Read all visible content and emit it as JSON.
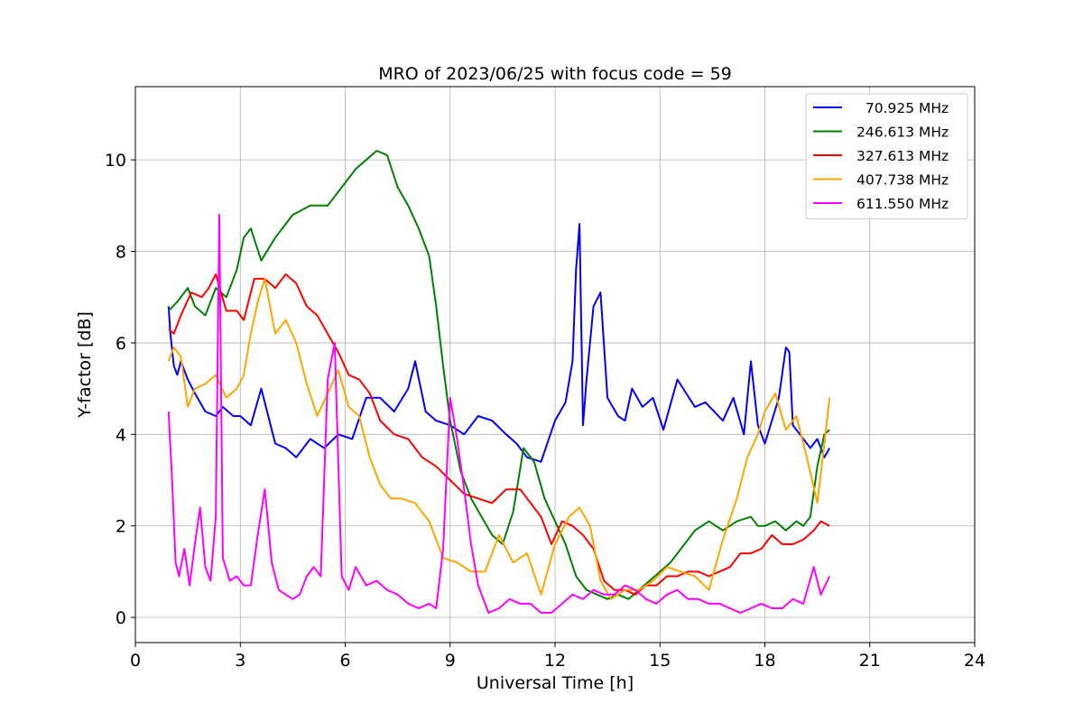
{
  "chart_data": {
    "type": "line",
    "title": "MRO of 2023/06/25 with focus code = 59",
    "xlabel": "Universal Time [h]",
    "ylabel": "Y-factor [dB]",
    "xlim": [
      0,
      24
    ],
    "ylim": [
      -0.55,
      11.6
    ],
    "x_ticks": [
      0,
      3,
      6,
      9,
      12,
      15,
      18,
      21,
      24
    ],
    "y_ticks": [
      0,
      2,
      4,
      6,
      8,
      10
    ],
    "grid": true,
    "legend_position": "upper right",
    "series": [
      {
        "name": "  70.925 MHz",
        "color": "#0000ff",
        "x": [
          0.95,
          1.0,
          1.1,
          1.2,
          1.3,
          1.5,
          1.7,
          2.0,
          2.3,
          2.5,
          2.8,
          3.0,
          3.3,
          3.6,
          4.0,
          4.3,
          4.6,
          5.0,
          5.4,
          5.8,
          6.2,
          6.6,
          7.0,
          7.4,
          7.8,
          8.0,
          8.3,
          8.6,
          9.0,
          9.4,
          9.8,
          10.2,
          10.6,
          10.9,
          11.2,
          11.6,
          12.0,
          12.3,
          12.5,
          12.6,
          12.7,
          12.8,
          12.9,
          13.1,
          13.3,
          13.5,
          13.8,
          14.0,
          14.2,
          14.5,
          14.8,
          15.1,
          15.5,
          16.0,
          16.3,
          16.8,
          17.1,
          17.4,
          17.6,
          17.8,
          18.0,
          18.4,
          18.6,
          18.7,
          18.8,
          19.0,
          19.3,
          19.5,
          19.7,
          19.85
        ],
        "y": [
          6.8,
          6.2,
          5.5,
          5.3,
          5.6,
          5.2,
          4.9,
          4.5,
          4.4,
          4.6,
          4.4,
          4.4,
          4.2,
          5.0,
          3.8,
          3.7,
          3.5,
          3.9,
          3.7,
          4.0,
          3.9,
          4.8,
          4.8,
          4.5,
          5.0,
          5.6,
          4.5,
          4.3,
          4.2,
          4.0,
          4.4,
          4.3,
          4.0,
          3.8,
          3.5,
          3.4,
          4.3,
          4.7,
          5.6,
          7.6,
          8.6,
          4.2,
          5.2,
          6.8,
          7.1,
          4.8,
          4.4,
          4.3,
          5.0,
          4.6,
          4.8,
          4.1,
          5.2,
          4.6,
          4.7,
          4.3,
          4.8,
          4.0,
          5.6,
          4.2,
          3.8,
          4.8,
          5.9,
          5.8,
          4.2,
          4.0,
          3.7,
          3.9,
          3.5,
          3.7
        ]
      },
      {
        "name": "246.613 MHz",
        "color": "#008000",
        "x": [
          0.95,
          1.2,
          1.5,
          1.7,
          2.0,
          2.3,
          2.6,
          2.9,
          3.1,
          3.3,
          3.6,
          4.0,
          4.5,
          5.0,
          5.5,
          6.0,
          6.3,
          6.6,
          6.9,
          7.2,
          7.5,
          7.8,
          8.1,
          8.4,
          8.6,
          8.8,
          9.0,
          9.3,
          9.6,
          9.9,
          10.2,
          10.5,
          10.8,
          11.1,
          11.4,
          11.7,
          12.0,
          12.3,
          12.6,
          12.9,
          13.2,
          13.5,
          13.8,
          14.1,
          14.4,
          14.7,
          15.0,
          15.3,
          15.6,
          16.0,
          16.4,
          16.8,
          17.2,
          17.6,
          17.8,
          18.0,
          18.3,
          18.6,
          18.9,
          19.1,
          19.3,
          19.5,
          19.7,
          19.85
        ],
        "y": [
          6.7,
          6.9,
          7.2,
          6.8,
          6.6,
          7.2,
          7.0,
          7.6,
          8.3,
          8.5,
          7.8,
          8.3,
          8.8,
          9.0,
          9.0,
          9.5,
          9.8,
          10.0,
          10.2,
          10.1,
          9.4,
          9.0,
          8.5,
          7.9,
          6.8,
          5.5,
          4.3,
          3.2,
          2.6,
          2.2,
          1.8,
          1.6,
          2.3,
          3.7,
          3.4,
          2.6,
          2.1,
          1.6,
          0.9,
          0.6,
          0.5,
          0.4,
          0.5,
          0.4,
          0.6,
          0.8,
          1.0,
          1.2,
          1.5,
          1.9,
          2.1,
          1.9,
          2.1,
          2.2,
          2.0,
          2.0,
          2.1,
          1.9,
          2.1,
          2.0,
          2.2,
          3.3,
          4.0,
          4.1
        ]
      },
      {
        "name": "327.613 MHz",
        "color": "#ff0000",
        "x": [
          0.95,
          1.1,
          1.3,
          1.6,
          1.9,
          2.1,
          2.3,
          2.6,
          2.9,
          3.1,
          3.4,
          3.7,
          4.0,
          4.3,
          4.6,
          4.9,
          5.2,
          5.5,
          5.8,
          6.1,
          6.4,
          6.7,
          7.0,
          7.4,
          7.8,
          8.2,
          8.6,
          9.0,
          9.4,
          9.8,
          10.2,
          10.6,
          11.0,
          11.3,
          11.6,
          11.9,
          12.2,
          12.5,
          12.8,
          13.1,
          13.4,
          13.7,
          14.0,
          14.3,
          14.6,
          14.9,
          15.2,
          15.5,
          15.8,
          16.1,
          16.4,
          16.7,
          17.0,
          17.3,
          17.6,
          17.9,
          18.2,
          18.5,
          18.8,
          19.1,
          19.4,
          19.6,
          19.85
        ],
        "y": [
          6.3,
          6.2,
          6.6,
          7.1,
          7.0,
          7.2,
          7.5,
          6.7,
          6.7,
          6.5,
          7.4,
          7.4,
          7.2,
          7.5,
          7.3,
          6.8,
          6.6,
          6.2,
          5.8,
          5.3,
          5.2,
          4.9,
          4.3,
          4.0,
          3.9,
          3.5,
          3.3,
          3.0,
          2.7,
          2.6,
          2.5,
          2.8,
          2.8,
          2.5,
          2.2,
          1.6,
          2.1,
          2.0,
          1.8,
          1.5,
          0.8,
          0.6,
          0.6,
          0.5,
          0.7,
          0.7,
          0.9,
          0.9,
          1.0,
          1.0,
          0.9,
          1.0,
          1.1,
          1.4,
          1.4,
          1.5,
          1.8,
          1.6,
          1.6,
          1.7,
          1.9,
          2.1,
          2.0
        ]
      },
      {
        "name": "407.738 MHz",
        "color": "#ffa500",
        "x": [
          0.95,
          1.1,
          1.3,
          1.5,
          1.7,
          2.0,
          2.3,
          2.6,
          2.9,
          3.1,
          3.3,
          3.5,
          3.7,
          4.0,
          4.3,
          4.6,
          4.9,
          5.2,
          5.5,
          5.8,
          6.1,
          6.4,
          6.7,
          7.0,
          7.3,
          7.6,
          8.0,
          8.4,
          8.8,
          9.2,
          9.6,
          10.0,
          10.4,
          10.8,
          11.2,
          11.6,
          12.0,
          12.4,
          12.7,
          13.0,
          13.3,
          13.6,
          14.0,
          14.4,
          14.8,
          15.2,
          15.6,
          16.0,
          16.4,
          16.8,
          17.2,
          17.5,
          17.8,
          18.0,
          18.3,
          18.6,
          18.9,
          19.2,
          19.5,
          19.7,
          19.85
        ],
        "y": [
          5.6,
          5.9,
          5.7,
          4.6,
          5.0,
          5.1,
          5.3,
          4.8,
          5.0,
          5.3,
          6.2,
          6.9,
          7.4,
          6.2,
          6.5,
          6.0,
          5.1,
          4.4,
          4.9,
          5.4,
          4.6,
          4.4,
          3.5,
          2.9,
          2.6,
          2.6,
          2.5,
          2.1,
          1.3,
          1.2,
          1.0,
          1.0,
          1.8,
          1.2,
          1.4,
          0.5,
          1.6,
          2.2,
          2.4,
          2.0,
          0.8,
          0.4,
          0.6,
          0.6,
          0.8,
          1.1,
          1.0,
          0.9,
          0.6,
          1.7,
          2.6,
          3.5,
          4.0,
          4.5,
          4.9,
          4.1,
          4.4,
          3.5,
          2.5,
          3.8,
          4.8
        ]
      },
      {
        "name": "611.550 MHz",
        "color": "#ff00ff",
        "x": [
          0.95,
          1.05,
          1.15,
          1.25,
          1.4,
          1.55,
          1.7,
          1.85,
          2.0,
          2.15,
          2.3,
          2.4,
          2.5,
          2.7,
          2.9,
          3.1,
          3.3,
          3.5,
          3.7,
          3.9,
          4.1,
          4.3,
          4.5,
          4.7,
          4.9,
          5.1,
          5.3,
          5.5,
          5.7,
          5.9,
          6.1,
          6.3,
          6.6,
          6.9,
          7.2,
          7.5,
          7.8,
          8.1,
          8.4,
          8.6,
          8.8,
          9.0,
          9.2,
          9.4,
          9.6,
          9.8,
          10.1,
          10.4,
          10.7,
          11.0,
          11.3,
          11.6,
          11.9,
          12.2,
          12.5,
          12.8,
          13.1,
          13.4,
          13.7,
          14.0,
          14.3,
          14.6,
          14.9,
          15.2,
          15.5,
          15.8,
          16.1,
          16.4,
          16.7,
          17.0,
          17.3,
          17.6,
          17.9,
          18.2,
          18.5,
          18.8,
          19.1,
          19.4,
          19.6,
          19.85
        ],
        "y": [
          4.5,
          3.0,
          1.2,
          0.9,
          1.5,
          0.7,
          1.6,
          2.4,
          1.1,
          0.8,
          2.2,
          8.8,
          1.3,
          0.8,
          0.9,
          0.7,
          0.7,
          1.8,
          2.8,
          1.2,
          0.6,
          0.5,
          0.4,
          0.5,
          0.9,
          1.1,
          0.9,
          5.2,
          6.0,
          0.9,
          0.6,
          1.1,
          0.7,
          0.8,
          0.6,
          0.5,
          0.3,
          0.2,
          0.3,
          0.2,
          1.5,
          4.8,
          3.9,
          2.8,
          1.6,
          0.7,
          0.1,
          0.2,
          0.4,
          0.3,
          0.3,
          0.1,
          0.1,
          0.3,
          0.5,
          0.4,
          0.6,
          0.5,
          0.5,
          0.7,
          0.6,
          0.4,
          0.3,
          0.5,
          0.6,
          0.4,
          0.4,
          0.3,
          0.3,
          0.2,
          0.1,
          0.2,
          0.3,
          0.2,
          0.2,
          0.4,
          0.3,
          1.1,
          0.5,
          0.9
        ]
      }
    ]
  }
}
